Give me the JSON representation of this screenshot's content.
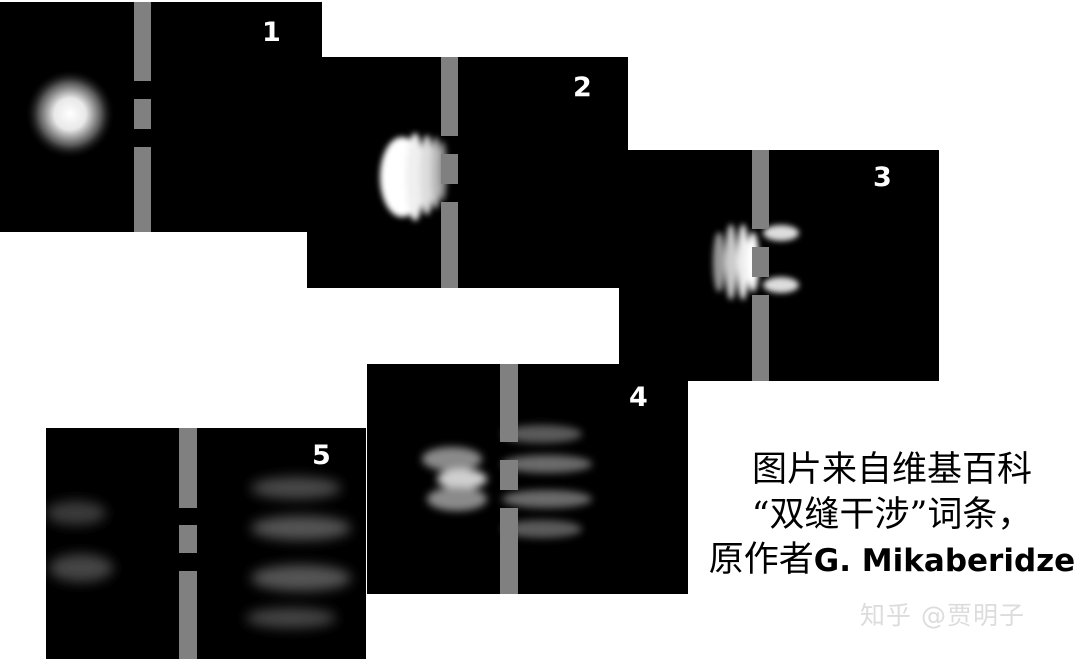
{
  "panels": [
    {
      "id": "p1",
      "label": "1"
    },
    {
      "id": "p2",
      "label": "2"
    },
    {
      "id": "p3",
      "label": "3"
    },
    {
      "id": "p4",
      "label": "4"
    },
    {
      "id": "p5",
      "label": "5"
    }
  ],
  "caption": {
    "line1": "图片来自维基百科",
    "line2": "“双缝干涉”词条，",
    "line3_prefix": "原作者",
    "line3_author": "G. Mikaberidze"
  },
  "watermark": "知乎 @贾明子",
  "colors": {
    "background": "#000000",
    "barrier": "#808080",
    "wave": "#ffffff",
    "page": "#ffffff"
  }
}
